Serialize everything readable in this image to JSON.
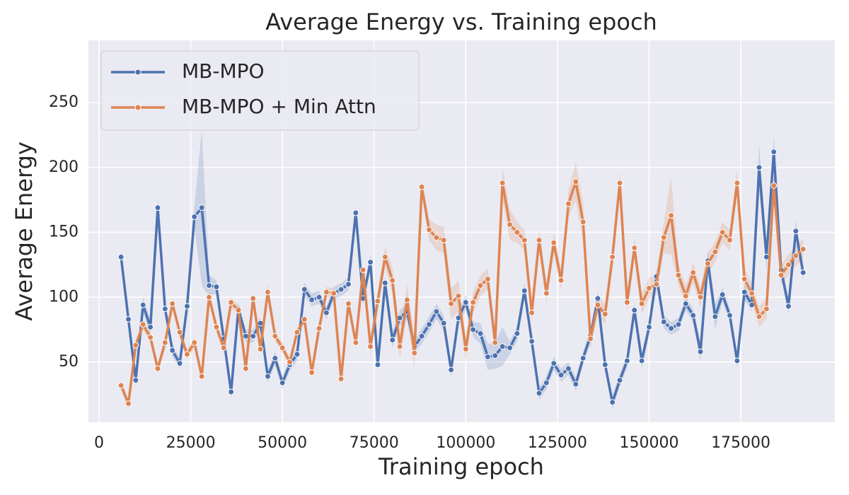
{
  "chart_data": {
    "type": "line",
    "title": "Average Energy vs. Training epoch",
    "xlabel": "Training epoch",
    "ylabel": "Average Energy",
    "x": [
      6000,
      8000,
      10000,
      12000,
      14000,
      16000,
      18000,
      20000,
      22000,
      24000,
      26000,
      28000,
      30000,
      32000,
      34000,
      36000,
      38000,
      40000,
      42000,
      44000,
      46000,
      48000,
      50000,
      52000,
      54000,
      56000,
      58000,
      60000,
      62000,
      64000,
      66000,
      68000,
      70000,
      72000,
      74000,
      76000,
      78000,
      80000,
      82000,
      84000,
      86000,
      88000,
      90000,
      92000,
      94000,
      96000,
      98000,
      100000,
      102000,
      104000,
      106000,
      108000,
      110000,
      112000,
      114000,
      116000,
      118000,
      120000,
      122000,
      124000,
      126000,
      128000,
      130000,
      132000,
      134000,
      136000,
      138000,
      140000,
      142000,
      144000,
      146000,
      148000,
      150000,
      152000,
      154000,
      156000,
      158000,
      160000,
      162000,
      164000,
      166000,
      168000,
      170000,
      172000,
      174000,
      176000,
      178000,
      180000,
      182000,
      184000,
      186000,
      188000,
      190000,
      192000
    ],
    "series": [
      {
        "name": "MB-MPO",
        "color": "#4c72b0",
        "values": [
          131,
          83,
          36,
          94,
          77,
          169,
          91,
          59,
          49,
          93,
          162,
          169,
          109,
          108,
          68,
          27,
          91,
          70,
          70,
          80,
          39,
          53,
          34,
          48,
          56,
          106,
          98,
          100,
          88,
          103,
          106,
          110,
          165,
          99,
          127,
          48,
          111,
          67,
          84,
          89,
          62,
          70,
          79,
          89,
          80,
          44,
          84,
          96,
          75,
          72,
          54,
          55,
          62,
          61,
          72,
          105,
          66,
          26,
          34,
          49,
          40,
          45,
          33,
          53,
          70,
          99,
          48,
          19,
          36,
          51,
          90,
          51,
          77,
          116,
          81,
          76,
          79,
          95,
          86,
          58,
          128,
          85,
          102,
          86,
          51,
          104,
          94,
          200,
          131,
          212,
          121,
          93,
          151,
          119
        ],
        "ci": [
          5,
          5,
          5,
          6,
          6,
          8,
          5,
          5,
          4,
          5,
          8,
          60,
          8,
          5,
          5,
          5,
          5,
          5,
          5,
          5,
          5,
          5,
          5,
          5,
          5,
          5,
          5,
          5,
          5,
          5,
          5,
          5,
          6,
          5,
          6,
          5,
          6,
          6,
          6,
          6,
          5,
          6,
          6,
          6,
          6,
          6,
          6,
          6,
          6,
          8,
          10,
          10,
          15,
          5,
          6,
          6,
          6,
          5,
          5,
          5,
          5,
          5,
          5,
          5,
          5,
          6,
          5,
          5,
          5,
          5,
          5,
          6,
          6,
          6,
          5,
          5,
          5,
          5,
          5,
          8,
          8,
          10,
          5,
          5,
          5,
          6,
          5,
          18,
          10,
          12,
          6,
          6,
          8,
          6
        ]
      },
      {
        "name": "MB-MPO + Min Attn",
        "color": "#dd8452",
        "values": [
          32,
          18,
          63,
          79,
          69,
          45,
          65,
          95,
          73,
          56,
          65,
          39,
          100,
          77,
          61,
          96,
          90,
          45,
          99,
          60,
          104,
          70,
          61,
          50,
          73,
          83,
          42,
          76,
          104,
          103,
          37,
          95,
          65,
          121,
          62,
          97,
          131,
          113,
          62,
          98,
          57,
          185,
          152,
          146,
          144,
          95,
          101,
          60,
          96,
          109,
          114,
          65,
          188,
          156,
          150,
          144,
          88,
          144,
          103,
          142,
          113,
          172,
          189,
          158,
          68,
          94,
          87,
          131,
          188,
          96,
          138,
          95,
          107,
          110,
          146,
          163,
          117,
          101,
          119,
          100,
          126,
          135,
          150,
          144,
          188,
          114,
          103,
          85,
          91,
          186,
          117,
          125,
          132,
          137
        ],
        "ci": [
          4,
          4,
          4,
          4,
          4,
          4,
          4,
          4,
          4,
          4,
          4,
          4,
          4,
          4,
          4,
          4,
          4,
          4,
          4,
          4,
          6,
          4,
          4,
          4,
          4,
          4,
          4,
          4,
          4,
          4,
          4,
          4,
          4,
          4,
          6,
          8,
          8,
          10,
          10,
          12,
          12,
          6,
          8,
          10,
          10,
          12,
          12,
          10,
          8,
          8,
          8,
          6,
          12,
          12,
          8,
          8,
          8,
          8,
          8,
          8,
          8,
          10,
          15,
          15,
          8,
          8,
          8,
          8,
          8,
          8,
          8,
          8,
          8,
          8,
          12,
          30,
          8,
          8,
          8,
          8,
          8,
          8,
          8,
          8,
          10,
          8,
          8,
          8,
          8,
          10,
          8,
          8,
          8,
          8
        ]
      }
    ],
    "xlim": [
      -2900,
      200650
    ],
    "ylim": [
      3.7,
      298
    ],
    "xticks": [
      0,
      25000,
      50000,
      75000,
      100000,
      125000,
      150000,
      175000
    ],
    "yticks": [
      50,
      100,
      150,
      200,
      250
    ],
    "grid": true,
    "legend": "upper left"
  }
}
